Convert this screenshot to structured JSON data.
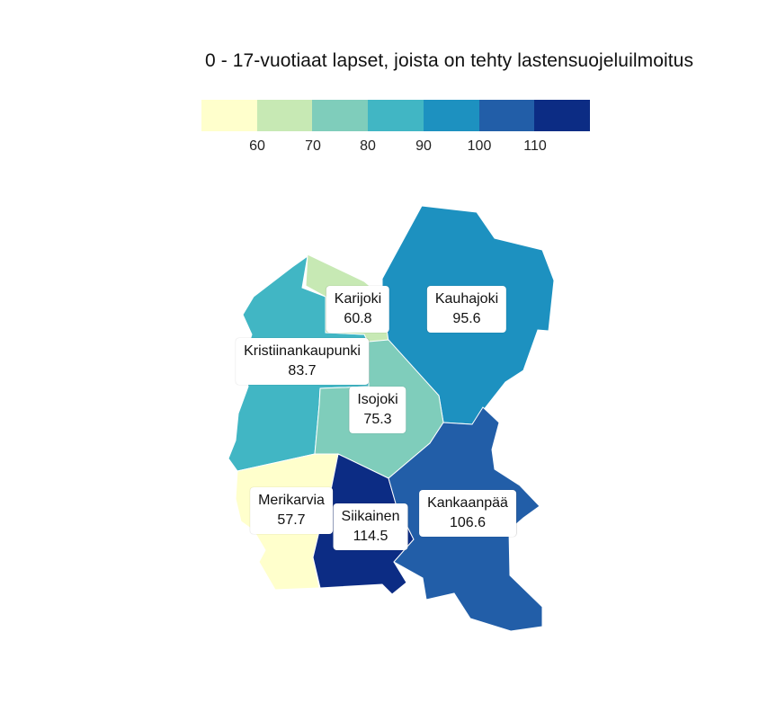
{
  "title": "0 - 17-vuotiaat lapset, joista on tehty lastensuojeluilmoitus",
  "legend": {
    "colors": [
      "#ffffcc",
      "#c7e9b4",
      "#7fcdbb",
      "#41b6c4",
      "#1d91c0",
      "#225ea8",
      "#0c2c84"
    ],
    "ticks": [
      "60",
      "70",
      "80",
      "90",
      "100",
      "110"
    ]
  },
  "regions": [
    {
      "name": "Karijoki",
      "value": "60.8",
      "color": "#c7e9b4"
    },
    {
      "name": "Kauhajoki",
      "value": "95.6",
      "color": "#1d91c0"
    },
    {
      "name": "Kristiinankaupunki",
      "value": "83.7",
      "color": "#41b6c4"
    },
    {
      "name": "Isojoki",
      "value": "75.3",
      "color": "#7fcdbb"
    },
    {
      "name": "Merikarvia",
      "value": "57.7",
      "color": "#ffffcc"
    },
    {
      "name": "Siikainen",
      "value": "114.5",
      "color": "#0c2c84"
    },
    {
      "name": "Kankaanpää",
      "value": "106.6",
      "color": "#225ea8"
    }
  ]
}
